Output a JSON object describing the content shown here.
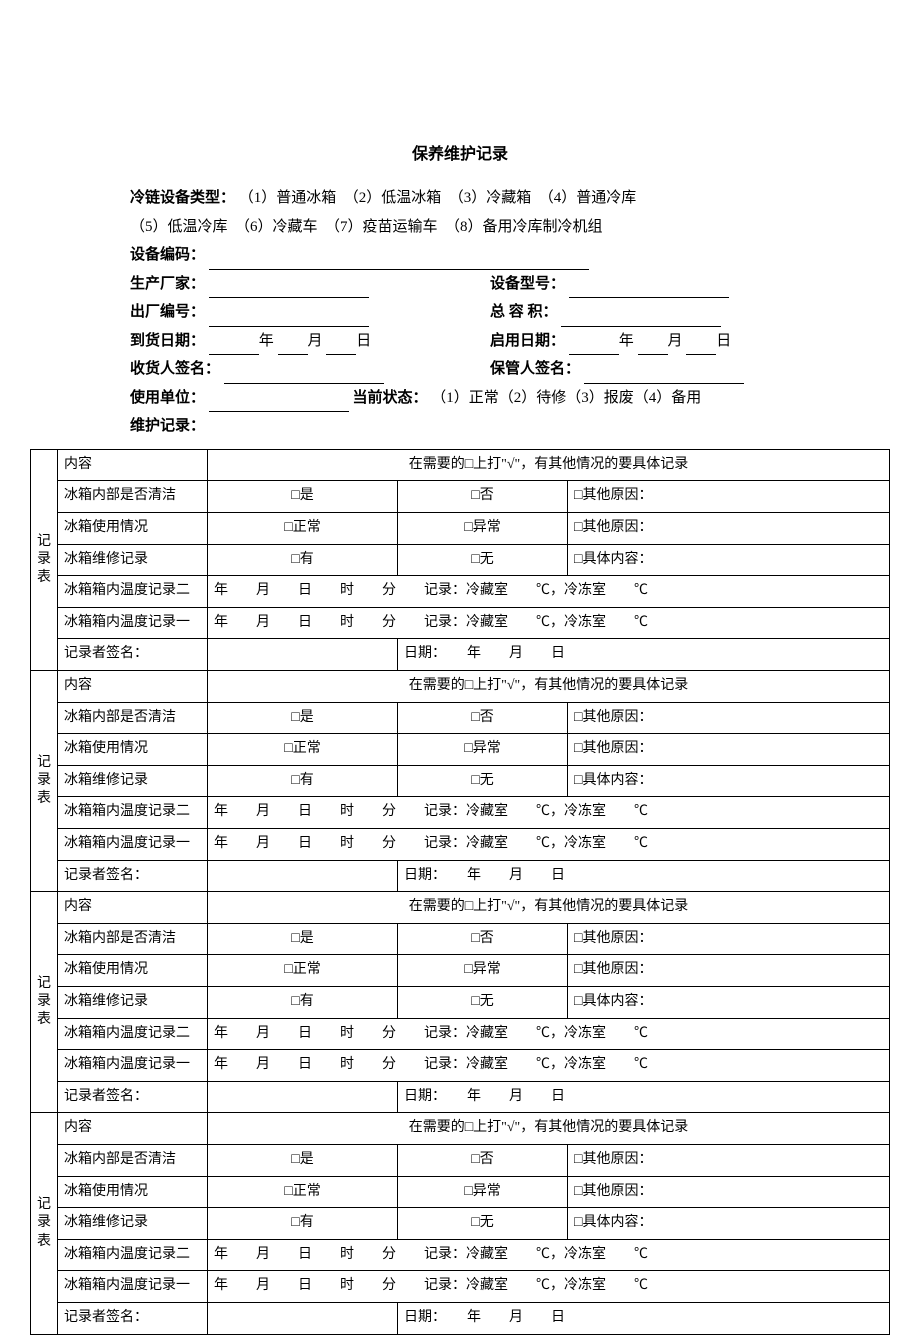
{
  "title": "保养维护记录",
  "header": {
    "type_label": "冷链设备类型：",
    "type_line": "（1）普通冰箱　（2）低温冰箱　（3）冷藏箱　（4）普通冷库",
    "type_line2": "（5）低温冷库　（6）冷藏车　（7）疫苗运输车　（8）备用冷库制冷机组",
    "dev_code": "设备编码：",
    "manufacturer": "生产厂家：",
    "model": "设备型号：",
    "serial": "出厂编号：",
    "capacity": "总 容 积：",
    "arrive_date": "到货日期：",
    "start_date": "启用日期：",
    "receiver_sig": "收货人签名：",
    "keeper_sig": "保管人签名：",
    "use_unit": "使用单位：",
    "cur_status_label": "当前状态：",
    "cur_status_opts": "（1）正常（2）待修（3）报废（4）备用",
    "maint_record": "维护记录：",
    "year": "年",
    "month": "月",
    "day": "日"
  },
  "block_label": "记录表",
  "rows": {
    "content": "内容",
    "content_hdr": "在需要的□上打\"√\"，有其他情况的要具体记录",
    "clean": "冰箱内部是否清洁",
    "clean_yes": "□是",
    "clean_no": "□否",
    "clean_other": "□其他原因：",
    "usage": "冰箱使用情况",
    "usage_normal": "□正常",
    "usage_abnormal": "□异常",
    "usage_other": "□其他原因：",
    "repair": "冰箱维修记录",
    "repair_yes": "□有",
    "repair_no": "□无",
    "repair_detail": "□具体内容：",
    "temp2": "冰箱箱内温度记录二",
    "temp1": "冰箱箱内温度记录一",
    "temp_line": "年　　月　　日　　时　　分　　记录：冷藏室　　℃，冷冻室　　℃",
    "signer": "记录者签名：",
    "date_line": "日期：　　年　　月　　日"
  }
}
